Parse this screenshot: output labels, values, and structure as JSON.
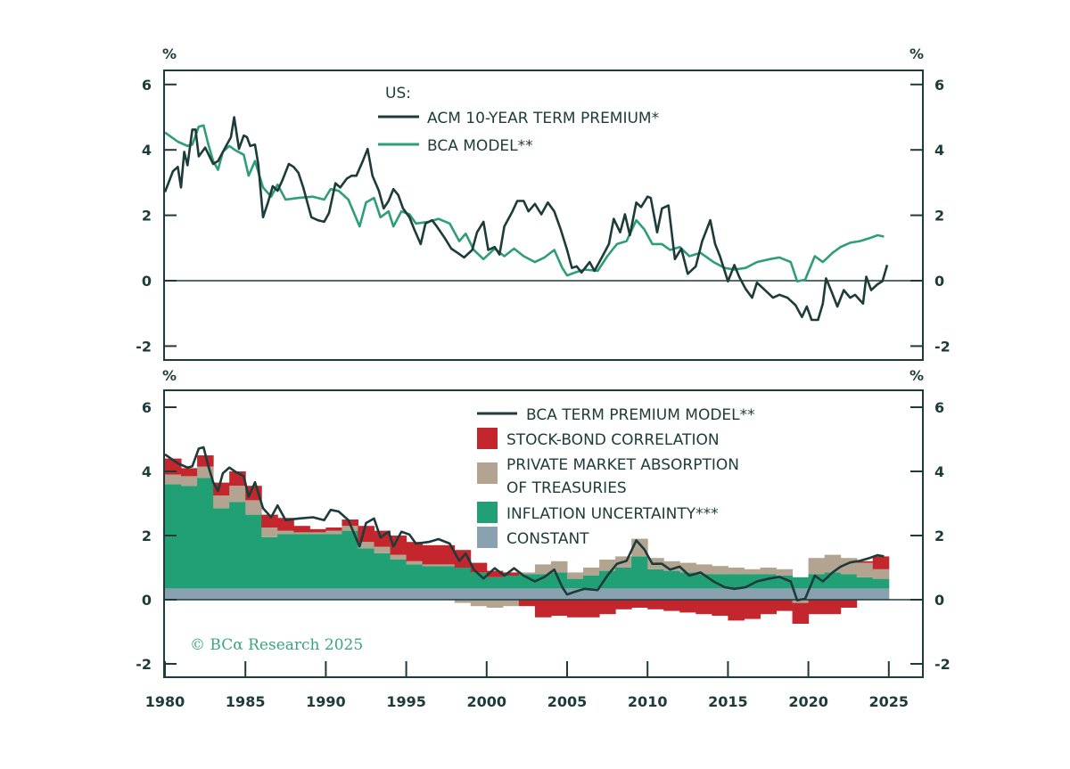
{
  "colors": {
    "dark": "#1d3b3a",
    "green": "#2e9e76",
    "red": "#c3262c",
    "tan": "#b3a491",
    "inflation": "#21a075",
    "constant": "#8aa2b0",
    "copyright": "#3aa57e"
  },
  "copyright": "© BCα Research 2025",
  "chart_data": [
    {
      "type": "line",
      "unit_left": "%",
      "unit_right": "%",
      "legend_title": "US:",
      "ylim": [
        -2.4,
        6.4
      ],
      "yticks": [
        6,
        4,
        2,
        0,
        -2
      ],
      "xlim": [
        1980,
        2027.3
      ],
      "series": [
        {
          "name": "ACM 10-YEAR TERM PREMIUM*",
          "color": "#1d3b3a",
          "x": [
            1980.0,
            1980.5,
            1980.8,
            1981.0,
            1981.2,
            1981.4,
            1981.7,
            1981.9,
            1982.1,
            1982.5,
            1983.0,
            1983.3,
            1983.8,
            1984.1,
            1984.3,
            1984.6,
            1984.9,
            1985.1,
            1985.3,
            1985.6,
            1985.8,
            1986.1,
            1986.4,
            1986.7,
            1987.0,
            1987.3,
            1987.7,
            1988.0,
            1988.3,
            1988.6,
            1989.1,
            1989.5,
            1989.9,
            1990.2,
            1990.6,
            1990.9,
            1991.3,
            1991.6,
            1991.9,
            1992.3,
            1992.6,
            1992.9,
            1993.3,
            1993.6,
            1993.9,
            1994.2,
            1994.5,
            1994.8,
            1995.2,
            1995.5,
            1995.9,
            1996.2,
            1996.6,
            1996.9,
            1997.4,
            1997.8,
            1998.2,
            1998.6,
            1999.1,
            1999.4,
            1999.8,
            2000.1,
            2000.5,
            2000.8,
            2001.1,
            2001.6,
            2001.9,
            2002.3,
            2002.6,
            2003.0,
            2003.4,
            2003.8,
            2004.2,
            2004.6,
            2005.0,
            2005.3,
            2005.6,
            2005.9,
            2006.4,
            2006.7,
            2007.2,
            2007.6,
            2007.9,
            2008.3,
            2008.6,
            2008.9,
            2009.3,
            2009.6,
            2010.0,
            2010.2,
            2010.6,
            2010.9,
            2011.3,
            2011.7,
            2012.1,
            2012.5,
            2013.0,
            2013.4,
            2013.9,
            2014.2,
            2014.5,
            2015.0,
            2015.4,
            2015.7,
            2016.1,
            2016.5,
            2016.8,
            2017.3,
            2017.8,
            2018.2,
            2018.7,
            2019.2,
            2019.6,
            2019.9,
            2020.2,
            2020.6,
            2020.9,
            2021.1,
            2021.4,
            2021.8,
            2022.2,
            2022.6,
            2022.9,
            2023.4,
            2023.6,
            2023.9,
            2024.3,
            2024.6,
            2024.9
          ],
          "y": [
            2.71,
            3.35,
            3.48,
            2.85,
            3.94,
            3.53,
            4.62,
            4.62,
            3.8,
            4.07,
            3.57,
            3.66,
            4.12,
            4.39,
            5.0,
            4.03,
            4.44,
            4.39,
            4.12,
            4.16,
            3.57,
            1.94,
            2.39,
            2.89,
            2.75,
            3.07,
            3.57,
            3.48,
            3.3,
            2.85,
            1.94,
            1.85,
            1.8,
            2.07,
            2.98,
            2.85,
            3.12,
            3.21,
            3.21,
            3.66,
            4.03,
            3.21,
            2.75,
            2.21,
            2.44,
            2.8,
            2.62,
            2.21,
            1.94,
            1.57,
            1.12,
            1.75,
            1.85,
            1.66,
            1.3,
            0.98,
            0.85,
            0.71,
            0.94,
            1.48,
            1.8,
            0.94,
            1.03,
            0.8,
            1.66,
            2.12,
            2.44,
            2.44,
            2.12,
            2.35,
            2.03,
            2.39,
            2.12,
            1.57,
            0.94,
            0.39,
            0.44,
            0.25,
            0.57,
            0.3,
            0.75,
            1.12,
            1.89,
            1.48,
            2.03,
            1.39,
            2.39,
            2.25,
            2.57,
            2.53,
            1.48,
            2.21,
            2.3,
            0.66,
            0.98,
            0.21,
            0.44,
            1.21,
            1.85,
            1.12,
            0.75,
            -0.02,
            0.48,
            0.12,
            -0.25,
            -0.52,
            -0.06,
            -0.29,
            -0.52,
            -0.43,
            -0.52,
            -0.75,
            -1.11,
            -0.79,
            -1.2,
            -1.2,
            -0.7,
            0.07,
            -0.29,
            -0.79,
            -0.29,
            -0.52,
            -0.43,
            -0.7,
            0.12,
            -0.29,
            -0.11,
            -0.02,
            0.48
          ]
        },
        {
          "name": "BCA MODEL**",
          "color": "#2e9e76",
          "x": [
            1980.0,
            1980.8,
            1981.4,
            1981.7,
            1982.1,
            1982.4,
            1982.7,
            1983.0,
            1983.3,
            1983.6,
            1984.0,
            1984.4,
            1984.9,
            1985.2,
            1985.6,
            1986.1,
            1986.6,
            1987.0,
            1987.5,
            1988.3,
            1989.2,
            1989.9,
            1990.3,
            1990.8,
            1991.4,
            1992.1,
            1992.5,
            1993.0,
            1993.4,
            1993.9,
            1994.2,
            1994.7,
            1995.2,
            1995.6,
            1996.4,
            1997.0,
            1997.7,
            1998.3,
            1998.7,
            1999.2,
            1999.8,
            2000.5,
            2001.1,
            2001.7,
            2002.3,
            2003.0,
            2003.6,
            2004.2,
            2004.7,
            2005.0,
            2005.5,
            2006.1,
            2006.9,
            2007.5,
            2008.1,
            2008.7,
            2009.3,
            2009.8,
            2010.3,
            2010.9,
            2011.4,
            2012.0,
            2012.6,
            2013.3,
            2014.1,
            2014.8,
            2015.4,
            2016.1,
            2016.8,
            2017.6,
            2018.2,
            2018.9,
            2019.3,
            2019.8,
            2020.4,
            2020.9,
            2021.5,
            2022.0,
            2022.6,
            2023.2,
            2023.8,
            2024.3,
            2024.7
          ],
          "y": [
            4.53,
            4.25,
            4.12,
            4.16,
            4.71,
            4.75,
            4.16,
            3.66,
            3.39,
            3.94,
            4.12,
            3.98,
            3.85,
            3.21,
            3.66,
            2.85,
            2.57,
            2.94,
            2.48,
            2.53,
            2.57,
            2.48,
            2.8,
            2.75,
            2.48,
            1.66,
            2.39,
            2.53,
            1.94,
            2.12,
            1.66,
            2.12,
            2.03,
            1.75,
            1.8,
            1.89,
            1.75,
            1.21,
            1.44,
            0.94,
            0.66,
            0.98,
            0.75,
            0.98,
            0.75,
            0.57,
            0.71,
            0.94,
            0.39,
            0.16,
            0.25,
            0.34,
            0.3,
            0.75,
            1.12,
            1.21,
            1.85,
            1.57,
            1.12,
            1.12,
            0.94,
            1.03,
            0.75,
            0.85,
            0.57,
            0.39,
            0.34,
            0.39,
            0.57,
            0.66,
            0.71,
            0.57,
            -0.02,
            0.03,
            0.75,
            0.57,
            0.85,
            1.03,
            1.16,
            1.21,
            1.3,
            1.39,
            1.35
          ]
        }
      ]
    },
    {
      "type": "area",
      "stacked": true,
      "unit_left": "%",
      "unit_right": "%",
      "ylim": [
        -2.4,
        6.4
      ],
      "yticks": [
        6,
        4,
        2,
        0,
        -2
      ],
      "xlim": [
        1980,
        2027.3
      ],
      "xticks": [
        "1980",
        "1985",
        "1990",
        "1995",
        "2000",
        "2005",
        "2010",
        "2015",
        "2020",
        "2025"
      ],
      "line": {
        "name": "BCA TERM PREMIUM MODEL**",
        "color": "#1d3b3a",
        "same_as_series": "BCA MODEL**"
      },
      "years": [
        1980,
        1981,
        1982,
        1983,
        1984,
        1985,
        1986,
        1987,
        1988,
        1989,
        1990,
        1991,
        1992,
        1993,
        1994,
        1995,
        1996,
        1997,
        1998,
        1999,
        2000,
        2001,
        2002,
        2003,
        2004,
        2005,
        2006,
        2007,
        2008,
        2009,
        2010,
        2011,
        2012,
        2013,
        2014,
        2015,
        2016,
        2017,
        2018,
        2019,
        2020,
        2021,
        2022,
        2023,
        2024
      ],
      "components": [
        {
          "name": "STOCK-BOND CORRELATION",
          "color": "#c3262c",
          "values": [
            0.5,
            0.25,
            0.35,
            0.4,
            0.45,
            0.45,
            0.4,
            0.4,
            0.2,
            0.1,
            0.1,
            0.2,
            0.5,
            0.5,
            0.6,
            0.6,
            0.6,
            0.6,
            0.55,
            0.3,
            0.2,
            0.1,
            -0.2,
            -0.55,
            -0.5,
            -0.55,
            -0.55,
            -0.45,
            -0.3,
            -0.25,
            -0.3,
            -0.35,
            -0.4,
            -0.45,
            -0.5,
            -0.65,
            -0.6,
            -0.45,
            -0.35,
            -0.65,
            -0.45,
            -0.45,
            -0.25,
            0.05,
            0.4
          ]
        },
        {
          "name": "PRIVATE MARKET ABSORPTION",
          "name_line2": "OF TREASURIES",
          "color": "#b3a491",
          "values": [
            0.3,
            0.3,
            0.35,
            0.4,
            0.5,
            0.45,
            0.3,
            0.1,
            0.05,
            0.05,
            0.1,
            0.15,
            0.2,
            0.2,
            0.15,
            0.1,
            0.05,
            0.05,
            -0.1,
            -0.2,
            -0.25,
            -0.2,
            0.05,
            0.3,
            0.35,
            0.2,
            0.25,
            0.35,
            0.35,
            0.55,
            0.35,
            0.3,
            0.3,
            0.3,
            0.25,
            0.2,
            0.15,
            0.2,
            0.2,
            -0.1,
            0.5,
            0.55,
            0.5,
            0.45,
            0.3
          ]
        },
        {
          "name": "INFLATION UNCERTAINTY***",
          "color": "#21a075",
          "values": [
            3.25,
            3.2,
            3.45,
            2.5,
            2.7,
            2.3,
            1.6,
            1.7,
            1.7,
            1.7,
            1.7,
            1.8,
            1.25,
            1.1,
            0.9,
            0.75,
            0.7,
            0.7,
            0.65,
            0.5,
            0.35,
            0.4,
            0.45,
            0.45,
            0.5,
            0.3,
            0.4,
            0.55,
            0.65,
            1.0,
            0.6,
            0.55,
            0.5,
            0.45,
            0.45,
            0.45,
            0.45,
            0.45,
            0.4,
            0.35,
            0.45,
            0.5,
            0.45,
            0.35,
            0.3
          ]
        },
        {
          "name": "CONSTANT",
          "color": "#8aa2b0",
          "values_constant": 0.35
        }
      ]
    }
  ]
}
